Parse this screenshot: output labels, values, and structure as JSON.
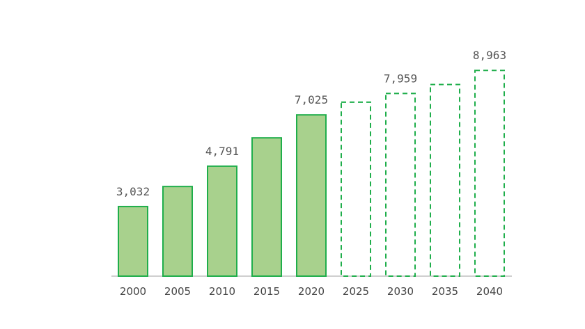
{
  "chart_data": {
    "type": "bar",
    "categories": [
      "2000",
      "2005",
      "2010",
      "2015",
      "2020",
      "2025",
      "2030",
      "2035",
      "2040"
    ],
    "values": [
      3032,
      3905,
      4791,
      6025,
      7025,
      7578,
      7959,
      8350,
      8963
    ],
    "projected": [
      false,
      false,
      false,
      false,
      false,
      true,
      true,
      true,
      true
    ],
    "data_labels": [
      "3,032",
      "",
      "4,791",
      "",
      "7,025",
      "",
      "7,959",
      "",
      "8,963"
    ],
    "ylim": [
      0,
      9500
    ],
    "grid": false,
    "legend": "none",
    "colors": {
      "bar_fill": "#a8d18d",
      "bar_stroke": "#1fae4b",
      "projected_stroke": "#1fae4b",
      "axis": "#bfbfbf",
      "tick_text": "#444444",
      "label_text": "#555555"
    }
  }
}
